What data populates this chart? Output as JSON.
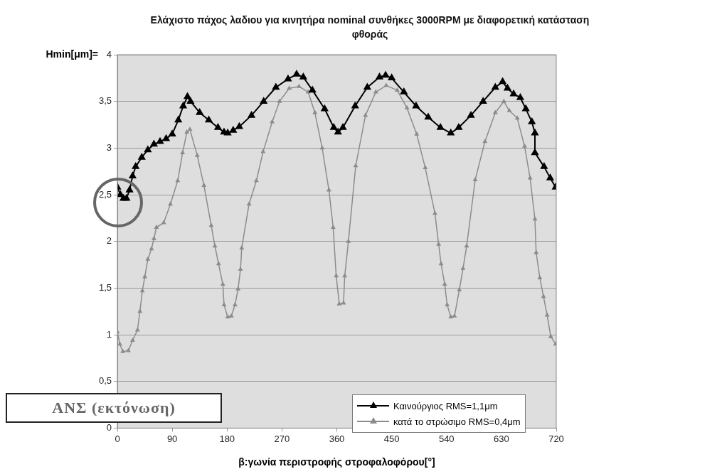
{
  "chart_data": {
    "type": "line",
    "title": "Ελάχιστο πάχος λαδιου για κινητήρα nominal συνθήκες 3000RPM με διαφορετική κατάσταση φθοράς",
    "xlabel": "β:γωνία περιστροφής στροφαλοφόρου[°]",
    "ylabel": "Hmin[μm]=",
    "annotations": [
      "ΑΝΣ (εκτόνωση)"
    ],
    "xlim": [
      0,
      720
    ],
    "xticks": [
      0,
      90,
      180,
      270,
      360,
      450,
      540,
      630,
      720
    ],
    "ylim": [
      0,
      4
    ],
    "yticks": [
      0,
      {
        "value": 0.5,
        "label": "0,5"
      },
      1,
      {
        "value": 1.5,
        "label": "1,5"
      },
      2,
      {
        "value": 2.5,
        "label": "2,5"
      },
      3,
      {
        "value": 3.5,
        "label": "3,5"
      },
      4
    ],
    "grid": "y",
    "legend": "bottom right",
    "marker": "triangle",
    "line_style": "solid",
    "series": [
      {
        "name": "Καινούργιος RMS=1,1μm",
        "color": "#000000",
        "x": [
          0,
          5,
          10,
          15,
          20,
          25,
          30,
          40,
          50,
          60,
          70,
          80,
          90,
          100,
          108,
          115,
          120,
          135,
          150,
          165,
          175,
          181,
          190,
          200,
          220,
          240,
          260,
          280,
          294,
          305,
          320,
          340,
          355,
          362,
          370,
          390,
          410,
          430,
          440,
          450,
          470,
          490,
          510,
          530,
          547,
          560,
          580,
          600,
          620,
          632,
          640,
          650,
          661,
          670,
          680,
          685,
          685,
          700,
          710,
          719
        ],
        "values": [
          2.58,
          2.5,
          2.46,
          2.46,
          2.55,
          2.7,
          2.8,
          2.9,
          2.98,
          3.04,
          3.07,
          3.1,
          3.15,
          3.3,
          3.45,
          3.55,
          3.5,
          3.38,
          3.3,
          3.22,
          3.17,
          3.16,
          3.19,
          3.23,
          3.35,
          3.5,
          3.65,
          3.74,
          3.79,
          3.76,
          3.62,
          3.42,
          3.22,
          3.17,
          3.22,
          3.45,
          3.65,
          3.76,
          3.78,
          3.75,
          3.6,
          3.45,
          3.33,
          3.22,
          3.16,
          3.22,
          3.35,
          3.5,
          3.65,
          3.71,
          3.64,
          3.58,
          3.54,
          3.42,
          3.28,
          3.16,
          2.95,
          2.8,
          2.68,
          2.58
        ]
      },
      {
        "name": "κατά το στρώσιμο RMS=0,4μm",
        "color": "#8c8c8c",
        "x": [
          0,
          4,
          9,
          18,
          25,
          33,
          37,
          41,
          45,
          50,
          56,
          60,
          64,
          76,
          87,
          99,
          107,
          114,
          119,
          131,
          142,
          154,
          160,
          166,
          173,
          175,
          181,
          187,
          193,
          198,
          202,
          204,
          216,
          228,
          239,
          254,
          266,
          282,
          298,
          313,
          324,
          336,
          347,
          354,
          359,
          364,
          371,
          373,
          379,
          391,
          407,
          424,
          441,
          459,
          475,
          491,
          505,
          521,
          527,
          531,
          537,
          541,
          547,
          553,
          561,
          567,
          573,
          587,
          603,
          620,
          634,
          643,
          656,
          668,
          677,
          685,
          687,
          693,
          699,
          705,
          711,
          719
        ],
        "values": [
          1.03,
          0.9,
          0.82,
          0.83,
          0.94,
          1.05,
          1.25,
          1.47,
          1.62,
          1.81,
          1.92,
          2.03,
          2.15,
          2.2,
          2.4,
          2.65,
          2.95,
          3.17,
          3.2,
          2.92,
          2.6,
          2.17,
          1.95,
          1.76,
          1.54,
          1.32,
          1.19,
          1.2,
          1.32,
          1.49,
          1.7,
          1.93,
          2.4,
          2.65,
          2.96,
          3.28,
          3.5,
          3.64,
          3.66,
          3.6,
          3.38,
          3.0,
          2.55,
          2.15,
          1.63,
          1.33,
          1.34,
          1.63,
          2.0,
          2.81,
          3.35,
          3.6,
          3.67,
          3.62,
          3.43,
          3.15,
          2.79,
          2.3,
          1.97,
          1.76,
          1.54,
          1.32,
          1.19,
          1.2,
          1.48,
          1.71,
          1.95,
          2.66,
          3.07,
          3.38,
          3.5,
          3.4,
          3.32,
          3.02,
          2.68,
          2.24,
          1.88,
          1.61,
          1.41,
          1.21,
          0.98,
          0.9
        ]
      }
    ]
  }
}
